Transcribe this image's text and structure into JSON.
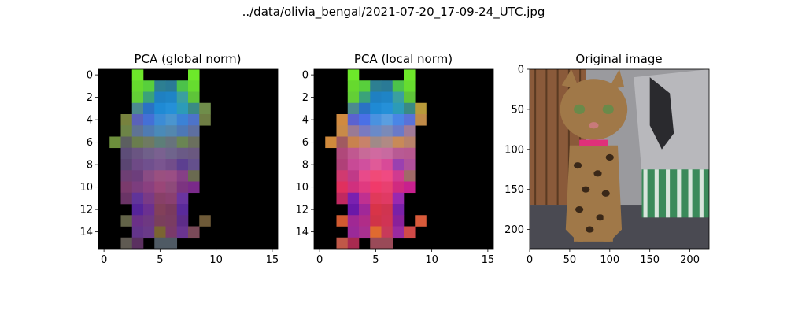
{
  "figure": {
    "suptitle": "../data/olivia_bengal/2021-07-20_17-09-24_UTC.jpg"
  },
  "chart_data": [
    {
      "type": "heatmap",
      "title": "PCA (global norm)",
      "grid_size": [
        16,
        16
      ],
      "xticks": [
        "0",
        "5",
        "10",
        "15"
      ],
      "yticks": [
        "0",
        "2",
        "4",
        "6",
        "8",
        "10",
        "12",
        "14"
      ],
      "background": "#000000",
      "cells": [
        {
          "r": 0,
          "c": 3,
          "color": "#6de82a"
        },
        {
          "r": 0,
          "c": 8,
          "color": "#6de82a"
        },
        {
          "r": 1,
          "c": 3,
          "color": "#66d92e"
        },
        {
          "r": 1,
          "c": 4,
          "color": "#58cf3c"
        },
        {
          "r": 1,
          "c": 5,
          "color": "#2d7f92"
        },
        {
          "r": 1,
          "c": 6,
          "color": "#2a7a96"
        },
        {
          "r": 1,
          "c": 7,
          "color": "#4cc24a"
        },
        {
          "r": 1,
          "c": 8,
          "color": "#66dc2f"
        },
        {
          "r": 2,
          "c": 3,
          "color": "#63cf36"
        },
        {
          "r": 2,
          "c": 4,
          "color": "#3aa27a"
        },
        {
          "r": 2,
          "c": 5,
          "color": "#1f80c2"
        },
        {
          "r": 2,
          "c": 6,
          "color": "#1f84c6"
        },
        {
          "r": 2,
          "c": 7,
          "color": "#3a9fa0"
        },
        {
          "r": 2,
          "c": 8,
          "color": "#5ec439"
        },
        {
          "r": 3,
          "c": 3,
          "color": "#4c8a8f"
        },
        {
          "r": 3,
          "c": 4,
          "color": "#2a72c4"
        },
        {
          "r": 3,
          "c": 5,
          "color": "#1f8ad4"
        },
        {
          "r": 3,
          "c": 6,
          "color": "#2590d8"
        },
        {
          "r": 3,
          "c": 7,
          "color": "#2c9bb8"
        },
        {
          "r": 3,
          "c": 8,
          "color": "#3a8a84"
        },
        {
          "r": 3,
          "c": 9,
          "color": "#6f8d4a"
        },
        {
          "r": 4,
          "c": 2,
          "color": "#77823e"
        },
        {
          "r": 4,
          "c": 3,
          "color": "#5a62ba"
        },
        {
          "r": 4,
          "c": 4,
          "color": "#4470d6"
        },
        {
          "r": 4,
          "c": 5,
          "color": "#3c8cd6"
        },
        {
          "r": 4,
          "c": 6,
          "color": "#4a95cf"
        },
        {
          "r": 4,
          "c": 7,
          "color": "#3b82d6"
        },
        {
          "r": 4,
          "c": 8,
          "color": "#4d73c9"
        },
        {
          "r": 4,
          "c": 9,
          "color": "#6e7d44"
        },
        {
          "r": 5,
          "c": 2,
          "color": "#6d8447"
        },
        {
          "r": 5,
          "c": 3,
          "color": "#5f7394"
        },
        {
          "r": 5,
          "c": 4,
          "color": "#4f7bb2"
        },
        {
          "r": 5,
          "c": 5,
          "color": "#4a8ab8"
        },
        {
          "r": 5,
          "c": 6,
          "color": "#5387ae"
        },
        {
          "r": 5,
          "c": 7,
          "color": "#4d78b6"
        },
        {
          "r": 5,
          "c": 8,
          "color": "#5e6fa0"
        },
        {
          "r": 6,
          "c": 1,
          "color": "#6d8f3c"
        },
        {
          "r": 6,
          "c": 2,
          "color": "#5c5f60"
        },
        {
          "r": 6,
          "c": 3,
          "color": "#6a7d4e"
        },
        {
          "r": 6,
          "c": 4,
          "color": "#6f7a62"
        },
        {
          "r": 6,
          "c": 5,
          "color": "#5d7e78"
        },
        {
          "r": 6,
          "c": 6,
          "color": "#67737c"
        },
        {
          "r": 6,
          "c": 7,
          "color": "#6a8553"
        },
        {
          "r": 6,
          "c": 8,
          "color": "#6b6f5e"
        },
        {
          "r": 7,
          "c": 2,
          "color": "#5d4d78"
        },
        {
          "r": 7,
          "c": 3,
          "color": "#6a5582"
        },
        {
          "r": 7,
          "c": 4,
          "color": "#70608a"
        },
        {
          "r": 7,
          "c": 5,
          "color": "#7a6190"
        },
        {
          "r": 7,
          "c": 6,
          "color": "#6f648c"
        },
        {
          "r": 7,
          "c": 7,
          "color": "#6a5a86"
        },
        {
          "r": 7,
          "c": 8,
          "color": "#6a5880"
        },
        {
          "r": 8,
          "c": 2,
          "color": "#5a4572"
        },
        {
          "r": 8,
          "c": 3,
          "color": "#6e4a86"
        },
        {
          "r": 8,
          "c": 4,
          "color": "#70508e"
        },
        {
          "r": 8,
          "c": 5,
          "color": "#7a5590"
        },
        {
          "r": 8,
          "c": 6,
          "color": "#724d8a"
        },
        {
          "r": 8,
          "c": 7,
          "color": "#5c3f90"
        },
        {
          "r": 8,
          "c": 8,
          "color": "#64508c"
        },
        {
          "r": 9,
          "c": 2,
          "color": "#6e3f74"
        },
        {
          "r": 9,
          "c": 3,
          "color": "#6d3e7c"
        },
        {
          "r": 9,
          "c": 4,
          "color": "#8a4c84"
        },
        {
          "r": 9,
          "c": 5,
          "color": "#9a5080"
        },
        {
          "r": 9,
          "c": 6,
          "color": "#9a4e84"
        },
        {
          "r": 9,
          "c": 7,
          "color": "#863f86"
        },
        {
          "r": 9,
          "c": 8,
          "color": "#6a6a50"
        },
        {
          "r": 10,
          "c": 2,
          "color": "#7a3a6c"
        },
        {
          "r": 10,
          "c": 3,
          "color": "#7c3d7e"
        },
        {
          "r": 10,
          "c": 4,
          "color": "#8a4080"
        },
        {
          "r": 10,
          "c": 5,
          "color": "#9a4678"
        },
        {
          "r": 10,
          "c": 6,
          "color": "#8e4a7a"
        },
        {
          "r": 10,
          "c": 7,
          "color": "#7c3480"
        },
        {
          "r": 10,
          "c": 8,
          "color": "#7a2a8a"
        },
        {
          "r": 11,
          "c": 2,
          "color": "#6a3466"
        },
        {
          "r": 11,
          "c": 3,
          "color": "#60349a"
        },
        {
          "r": 11,
          "c": 4,
          "color": "#7a3a86"
        },
        {
          "r": 11,
          "c": 5,
          "color": "#884068"
        },
        {
          "r": 11,
          "c": 6,
          "color": "#8a4070"
        },
        {
          "r": 11,
          "c": 7,
          "color": "#6a34a0"
        },
        {
          "r": 12,
          "c": 3,
          "color": "#55249a"
        },
        {
          "r": 12,
          "c": 4,
          "color": "#6b3090"
        },
        {
          "r": 12,
          "c": 5,
          "color": "#82405a"
        },
        {
          "r": 12,
          "c": 6,
          "color": "#7a3a5e"
        },
        {
          "r": 12,
          "c": 7,
          "color": "#5a2a9a"
        },
        {
          "r": 13,
          "c": 2,
          "color": "#626348"
        },
        {
          "r": 13,
          "c": 3,
          "color": "#6b3088"
        },
        {
          "r": 13,
          "c": 4,
          "color": "#6e3882"
        },
        {
          "r": 13,
          "c": 5,
          "color": "#7a3f5c"
        },
        {
          "r": 13,
          "c": 6,
          "color": "#7a3c62"
        },
        {
          "r": 13,
          "c": 7,
          "color": "#5d2c88"
        },
        {
          "r": 13,
          "c": 9,
          "color": "#6e5a38"
        },
        {
          "r": 14,
          "c": 3,
          "color": "#63348a"
        },
        {
          "r": 14,
          "c": 4,
          "color": "#6a3a88"
        },
        {
          "r": 14,
          "c": 5,
          "color": "#7a6432"
        },
        {
          "r": 14,
          "c": 6,
          "color": "#7a3a6a"
        },
        {
          "r": 14,
          "c": 7,
          "color": "#6a3490"
        },
        {
          "r": 14,
          "c": 8,
          "color": "#7a4a58"
        },
        {
          "r": 15,
          "c": 2,
          "color": "#5f5a52"
        },
        {
          "r": 15,
          "c": 3,
          "color": "#5b3060"
        },
        {
          "r": 15,
          "c": 5,
          "color": "#4f5a64"
        },
        {
          "r": 15,
          "c": 6,
          "color": "#4f5a64"
        }
      ]
    },
    {
      "type": "heatmap",
      "title": "PCA (local norm)",
      "grid_size": [
        16,
        16
      ],
      "xticks": [
        "0",
        "5",
        "10",
        "15"
      ],
      "yticks": [
        "0",
        "2",
        "4",
        "6",
        "8",
        "10",
        "12",
        "14"
      ],
      "background": "#000000",
      "cells": [
        {
          "r": 0,
          "c": 3,
          "color": "#6de82a"
        },
        {
          "r": 0,
          "c": 8,
          "color": "#6de82a"
        },
        {
          "r": 1,
          "c": 3,
          "color": "#66d92e"
        },
        {
          "r": 1,
          "c": 4,
          "color": "#58cf3c"
        },
        {
          "r": 1,
          "c": 5,
          "color": "#2d7f92"
        },
        {
          "r": 1,
          "c": 6,
          "color": "#2a7a96"
        },
        {
          "r": 1,
          "c": 7,
          "color": "#4cc24a"
        },
        {
          "r": 1,
          "c": 8,
          "color": "#66dc2f"
        },
        {
          "r": 2,
          "c": 3,
          "color": "#63cf36"
        },
        {
          "r": 2,
          "c": 4,
          "color": "#3aa27a"
        },
        {
          "r": 2,
          "c": 5,
          "color": "#1f80c2"
        },
        {
          "r": 2,
          "c": 6,
          "color": "#1f84c6"
        },
        {
          "r": 2,
          "c": 7,
          "color": "#3a9fa0"
        },
        {
          "r": 2,
          "c": 8,
          "color": "#5ec439"
        },
        {
          "r": 3,
          "c": 3,
          "color": "#4c8a8f"
        },
        {
          "r": 3,
          "c": 4,
          "color": "#2a72c4"
        },
        {
          "r": 3,
          "c": 5,
          "color": "#1f8ad4"
        },
        {
          "r": 3,
          "c": 6,
          "color": "#2590d8"
        },
        {
          "r": 3,
          "c": 7,
          "color": "#2c9bb8"
        },
        {
          "r": 3,
          "c": 8,
          "color": "#3a8a84"
        },
        {
          "r": 3,
          "c": 9,
          "color": "#b89a3a"
        },
        {
          "r": 4,
          "c": 2,
          "color": "#d08a40"
        },
        {
          "r": 4,
          "c": 3,
          "color": "#5a62d0"
        },
        {
          "r": 4,
          "c": 4,
          "color": "#4a70e6"
        },
        {
          "r": 4,
          "c": 5,
          "color": "#4a92e0"
        },
        {
          "r": 4,
          "c": 6,
          "color": "#5a9ee0"
        },
        {
          "r": 4,
          "c": 7,
          "color": "#4a86e6"
        },
        {
          "r": 4,
          "c": 8,
          "color": "#5a72d8"
        },
        {
          "r": 4,
          "c": 9,
          "color": "#c08a48"
        },
        {
          "r": 5,
          "c": 2,
          "color": "#c88a48"
        },
        {
          "r": 5,
          "c": 3,
          "color": "#9a7a94"
        },
        {
          "r": 5,
          "c": 4,
          "color": "#7a7ac0"
        },
        {
          "r": 5,
          "c": 5,
          "color": "#6a8ac8"
        },
        {
          "r": 5,
          "c": 6,
          "color": "#7a8ab8"
        },
        {
          "r": 5,
          "c": 7,
          "color": "#6a7ac8"
        },
        {
          "r": 5,
          "c": 8,
          "color": "#a07a98"
        },
        {
          "r": 6,
          "c": 1,
          "color": "#d08a3c"
        },
        {
          "r": 6,
          "c": 2,
          "color": "#a05a60"
        },
        {
          "r": 6,
          "c": 3,
          "color": "#c8824e"
        },
        {
          "r": 6,
          "c": 4,
          "color": "#c8826a"
        },
        {
          "r": 6,
          "c": 5,
          "color": "#a08a88"
        },
        {
          "r": 6,
          "c": 6,
          "color": "#b08a84"
        },
        {
          "r": 6,
          "c": 7,
          "color": "#c88a58"
        },
        {
          "r": 6,
          "c": 8,
          "color": "#b8826a"
        },
        {
          "r": 7,
          "c": 2,
          "color": "#b0487a"
        },
        {
          "r": 7,
          "c": 3,
          "color": "#c05890"
        },
        {
          "r": 7,
          "c": 4,
          "color": "#c86a98"
        },
        {
          "r": 7,
          "c": 5,
          "color": "#d06aa0"
        },
        {
          "r": 7,
          "c": 6,
          "color": "#c86aa0"
        },
        {
          "r": 7,
          "c": 7,
          "color": "#b85a94"
        },
        {
          "r": 7,
          "c": 8,
          "color": "#b85890"
        },
        {
          "r": 8,
          "c": 2,
          "color": "#b04078"
        },
        {
          "r": 8,
          "c": 3,
          "color": "#c84a96"
        },
        {
          "r": 8,
          "c": 4,
          "color": "#d0509e"
        },
        {
          "r": 8,
          "c": 5,
          "color": "#e05a98"
        },
        {
          "r": 8,
          "c": 6,
          "color": "#d84a98"
        },
        {
          "r": 8,
          "c": 7,
          "color": "#9a40b0"
        },
        {
          "r": 8,
          "c": 8,
          "color": "#b0509a"
        },
        {
          "r": 9,
          "c": 2,
          "color": "#d03a70"
        },
        {
          "r": 9,
          "c": 3,
          "color": "#c03a88"
        },
        {
          "r": 9,
          "c": 4,
          "color": "#e84a8a"
        },
        {
          "r": 9,
          "c": 5,
          "color": "#f04a78"
        },
        {
          "r": 9,
          "c": 6,
          "color": "#f04a82"
        },
        {
          "r": 9,
          "c": 7,
          "color": "#d03a90"
        },
        {
          "r": 9,
          "c": 8,
          "color": "#a06a68"
        },
        {
          "r": 10,
          "c": 2,
          "color": "#e0305e"
        },
        {
          "r": 10,
          "c": 3,
          "color": "#d0307e"
        },
        {
          "r": 10,
          "c": 4,
          "color": "#e03a80"
        },
        {
          "r": 10,
          "c": 5,
          "color": "#f03a6a"
        },
        {
          "r": 10,
          "c": 6,
          "color": "#e84070"
        },
        {
          "r": 10,
          "c": 7,
          "color": "#d02a80"
        },
        {
          "r": 10,
          "c": 8,
          "color": "#c8208e"
        },
        {
          "r": 11,
          "c": 2,
          "color": "#c02860"
        },
        {
          "r": 11,
          "c": 3,
          "color": "#7a20b0"
        },
        {
          "r": 11,
          "c": 4,
          "color": "#c03090"
        },
        {
          "r": 11,
          "c": 5,
          "color": "#e03a5a"
        },
        {
          "r": 11,
          "c": 6,
          "color": "#e03a64"
        },
        {
          "r": 11,
          "c": 7,
          "color": "#9a28b0"
        },
        {
          "r": 12,
          "c": 3,
          "color": "#6a18a8"
        },
        {
          "r": 12,
          "c": 4,
          "color": "#a02898"
        },
        {
          "r": 12,
          "c": 5,
          "color": "#d83448"
        },
        {
          "r": 12,
          "c": 6,
          "color": "#d03450"
        },
        {
          "r": 12,
          "c": 7,
          "color": "#7a20a8"
        },
        {
          "r": 13,
          "c": 2,
          "color": "#d05a30"
        },
        {
          "r": 13,
          "c": 3,
          "color": "#a02894"
        },
        {
          "r": 13,
          "c": 4,
          "color": "#b02c88"
        },
        {
          "r": 13,
          "c": 5,
          "color": "#d03448"
        },
        {
          "r": 13,
          "c": 6,
          "color": "#d03454"
        },
        {
          "r": 13,
          "c": 7,
          "color": "#8a209a"
        },
        {
          "r": 13,
          "c": 9,
          "color": "#d85a3a"
        },
        {
          "r": 14,
          "c": 3,
          "color": "#9a2a98"
        },
        {
          "r": 14,
          "c": 4,
          "color": "#a83090"
        },
        {
          "r": 14,
          "c": 5,
          "color": "#e06a30"
        },
        {
          "r": 14,
          "c": 6,
          "color": "#c83a5a"
        },
        {
          "r": 14,
          "c": 7,
          "color": "#9a2aa0"
        },
        {
          "r": 14,
          "c": 8,
          "color": "#d04a48"
        },
        {
          "r": 15,
          "c": 2,
          "color": "#c05848"
        },
        {
          "r": 15,
          "c": 3,
          "color": "#a82a50"
        },
        {
          "r": 15,
          "c": 5,
          "color": "#9a4a58"
        },
        {
          "r": 15,
          "c": 6,
          "color": "#9a4a58"
        }
      ]
    }
  ],
  "image_panel": {
    "title": "Original image",
    "xticks": [
      "0",
      "50",
      "100",
      "150",
      "200"
    ],
    "yticks": [
      "0",
      "50",
      "100",
      "150",
      "200"
    ],
    "extent": [
      0,
      224
    ],
    "colors": {
      "wood": "#8a5a3a",
      "wood_dark": "#5a3a22",
      "wall": "#9a9a9e",
      "floor": "#4a4a52",
      "pillow_green": "#3a8a5a",
      "pillow_white": "#d8e4dc",
      "cat_body": "#a07848",
      "cat_dark": "#3a2818",
      "collar": "#e0307a",
      "eye": "#6a8a4a",
      "poster_dark": "#2a2a2e"
    }
  }
}
